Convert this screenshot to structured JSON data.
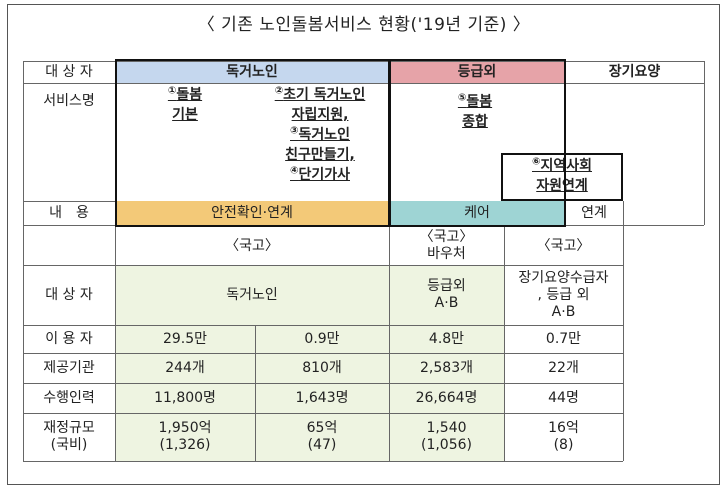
{
  "title": "〈 기존 노인돌봄서비스 현황('19년 기준) 〉",
  "header": {
    "label_target": "대 상 자",
    "label_service": "서비스명",
    "label_content": "내　용",
    "group_alone": "독거노인",
    "group_non_grade": "등급외",
    "group_ltc": "장기요양"
  },
  "services": {
    "s1_num": "①",
    "s1": [
      "돌봄",
      "기본"
    ],
    "s2_num": "②",
    "s2_line1": "초기 독거노인",
    "s2_line2": "자립지원,",
    "s3_num": "③",
    "s3_line1": "독거노인",
    "s3_line2": "친구만들기,",
    "s4_num": "④",
    "s4_line1": "단기가사",
    "s5_num": "⑤",
    "s5": [
      "돌봄",
      "종합"
    ],
    "s6_num": "⑥",
    "s6": [
      "지역사회",
      "자원연계"
    ]
  },
  "content": {
    "safety": "안전확인·연계",
    "care": "케어",
    "link": "연계"
  },
  "funding": {
    "col1": "〈국고〉",
    "col3_line1": "〈국고〉",
    "col3_line2": "바우처",
    "col4": "〈국고〉"
  },
  "rows": {
    "target_label": "대 상 자",
    "target_alone": "독거노인",
    "target_grade_line1": "등급외",
    "target_grade_line2": "A·B",
    "target_ltc_line1": "장기요양수급자",
    "target_ltc_line2": ", 등급 외",
    "target_ltc_line3": "A·B",
    "users_label": "이 용 자",
    "users": [
      "29.5만",
      "0.9만",
      "4.8만",
      "0.7만"
    ],
    "providers_label": "제공기관",
    "providers": [
      "244개",
      "810개",
      "2,583개",
      "22개"
    ],
    "staff_label": "수행인력",
    "staff": [
      "11,800명",
      "1,643명",
      "26,664명",
      "44명"
    ],
    "budget_label_line1": "재정규모",
    "budget_label_line2": "(국비)",
    "budget_line1": [
      "1,950억",
      "65억",
      "1,540",
      "16억"
    ],
    "budget_line2": [
      "(1,326)",
      "(47)",
      "(1,056)",
      "(8)"
    ]
  },
  "colors": {
    "blue_header": "#c5d7ee",
    "red_header": "#e6a3a8",
    "orange_content": "#f3c978",
    "teal_content": "#9ed4d4",
    "green_fill": "#eef4e1"
  }
}
